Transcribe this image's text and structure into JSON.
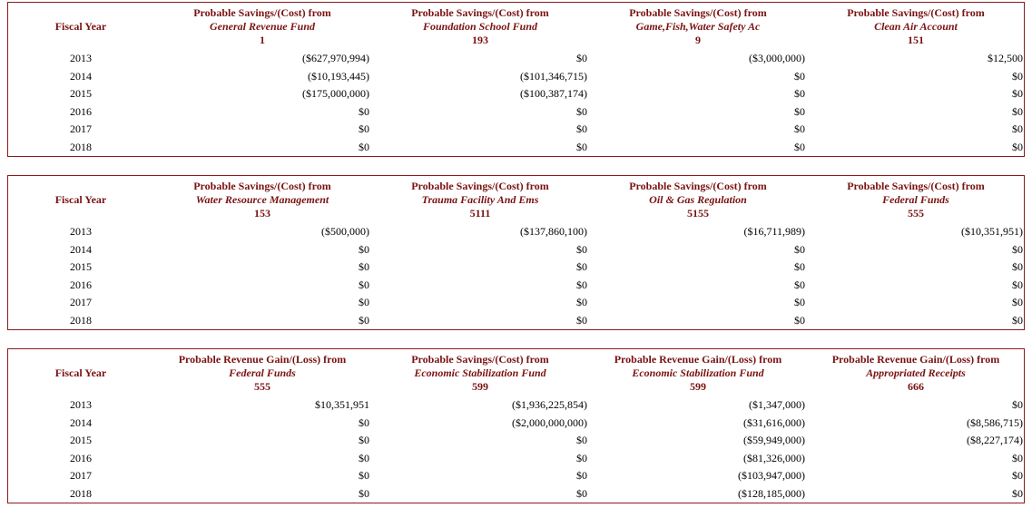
{
  "tables": [
    {
      "year_header": "Fiscal Year",
      "columns": [
        {
          "title": "Probable Savings/(Cost) from",
          "source": "General Revenue Fund",
          "number": "1",
          "values": [
            "($627,970,994)",
            "($10,193,445)",
            "($175,000,000)",
            "$0",
            "$0",
            "$0"
          ]
        },
        {
          "title": "Probable Savings/(Cost) from",
          "source": "Foundation School Fund",
          "number": "193",
          "values": [
            "$0",
            "($101,346,715)",
            "($100,387,174)",
            "$0",
            "$0",
            "$0"
          ]
        },
        {
          "title": "Probable Savings/(Cost) from",
          "source": "Game,Fish,Water Safety Ac",
          "number": "9",
          "values": [
            "($3,000,000)",
            "$0",
            "$0",
            "$0",
            "$0",
            "$0"
          ]
        },
        {
          "title": "Probable Savings/(Cost) from",
          "source": "Clean Air Account",
          "number": "151",
          "values": [
            "$12,500",
            "$0",
            "$0",
            "$0",
            "$0",
            "$0"
          ]
        }
      ],
      "years": [
        "2013",
        "2014",
        "2015",
        "2016",
        "2017",
        "2018"
      ]
    },
    {
      "year_header": "Fiscal Year",
      "columns": [
        {
          "title": "Probable Savings/(Cost) from",
          "source": "Water Resource Management",
          "number": "153",
          "values": [
            "($500,000)",
            "$0",
            "$0",
            "$0",
            "$0",
            "$0"
          ]
        },
        {
          "title": "Probable Savings/(Cost) from",
          "source": "Trauma Facility And Ems",
          "number": "5111",
          "values": [
            "($137,860,100)",
            "$0",
            "$0",
            "$0",
            "$0",
            "$0"
          ]
        },
        {
          "title": "Probable Savings/(Cost) from",
          "source": "Oil & Gas Regulation",
          "number": "5155",
          "values": [
            "($16,711,989)",
            "$0",
            "$0",
            "$0",
            "$0",
            "$0"
          ]
        },
        {
          "title": "Probable Savings/(Cost) from",
          "source": "Federal Funds",
          "number": "555",
          "values": [
            "($10,351,951)",
            "$0",
            "$0",
            "$0",
            "$0",
            "$0"
          ]
        }
      ],
      "years": [
        "2013",
        "2014",
        "2015",
        "2016",
        "2017",
        "2018"
      ]
    },
    {
      "year_header": "Fiscal Year",
      "columns": [
        {
          "title": "Probable Revenue Gain/(Loss) from",
          "source": "Federal Funds",
          "number": "555",
          "values": [
            "$10,351,951",
            "$0",
            "$0",
            "$0",
            "$0",
            "$0"
          ]
        },
        {
          "title": "Probable Savings/(Cost) from",
          "source": "Economic Stabilization Fund",
          "number": "599",
          "values": [
            "($1,936,225,854)",
            "($2,000,000,000)",
            "$0",
            "$0",
            "$0",
            "$0"
          ]
        },
        {
          "title": "Probable Revenue Gain/(Loss) from",
          "source": "Economic Stabilization Fund",
          "number": "599",
          "values": [
            "($1,347,000)",
            "($31,616,000)",
            "($59,949,000)",
            "($81,326,000)",
            "($103,947,000)",
            "($128,185,000)"
          ]
        },
        {
          "title": "Probable Revenue Gain/(Loss) from",
          "source": "Appropriated Receipts",
          "number": "666",
          "values": [
            "$0",
            "($8,586,715)",
            "($8,227,174)",
            "$0",
            "$0",
            "$0"
          ]
        }
      ],
      "years": [
        "2013",
        "2014",
        "2015",
        "2016",
        "2017",
        "2018"
      ]
    }
  ]
}
